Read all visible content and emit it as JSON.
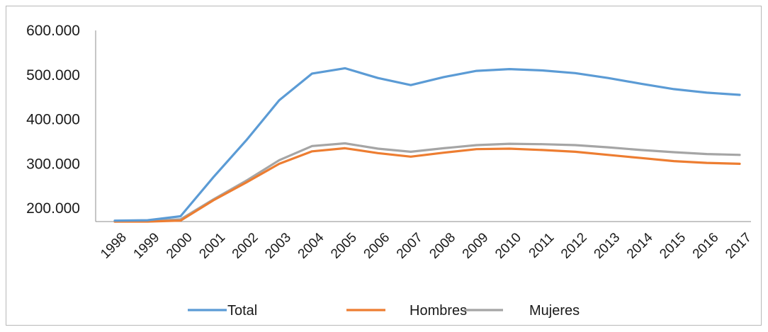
{
  "chart_data": {
    "type": "line",
    "title": "",
    "xlabel": "",
    "ylabel": "",
    "ylim": [
      170000,
      600000
    ],
    "yticks": [
      "600.000",
      "500.000",
      "400.000",
      "300.000",
      "200.000"
    ],
    "ytick_values": [
      600000,
      500000,
      400000,
      300000,
      200000
    ],
    "x": [
      "1998",
      "1999",
      "2000",
      "2001",
      "2002",
      "2003",
      "2004",
      "2005",
      "2006",
      "2007",
      "2008",
      "2009",
      "2010",
      "2011",
      "2012",
      "2013",
      "2014",
      "2015",
      "2016",
      "2017"
    ],
    "series": [
      {
        "name": "Total",
        "color": "#5b9bd5",
        "values": [
          172000,
          173000,
          182000,
          270000,
          353000,
          443000,
          503000,
          515000,
          493000,
          477000,
          495000,
          509000,
          513000,
          510000,
          504000,
          493000,
          480000,
          468000,
          460000,
          455000
        ]
      },
      {
        "name": "Hombres",
        "color": "#ed7d31",
        "values": [
          170000,
          170000,
          172000,
          218000,
          258000,
          300000,
          328000,
          335000,
          324000,
          316000,
          325000,
          333000,
          334000,
          331000,
          327000,
          320000,
          313000,
          306000,
          302000,
          300000
        ]
      },
      {
        "name": "Mujeres",
        "color": "#a5a5a5",
        "values": [
          170000,
          171000,
          175000,
          220000,
          262000,
          308000,
          340000,
          346000,
          334000,
          327000,
          335000,
          342000,
          345000,
          344000,
          342000,
          337000,
          331000,
          326000,
          322000,
          320000
        ]
      }
    ],
    "grid": false,
    "legend_position": "bottom"
  }
}
